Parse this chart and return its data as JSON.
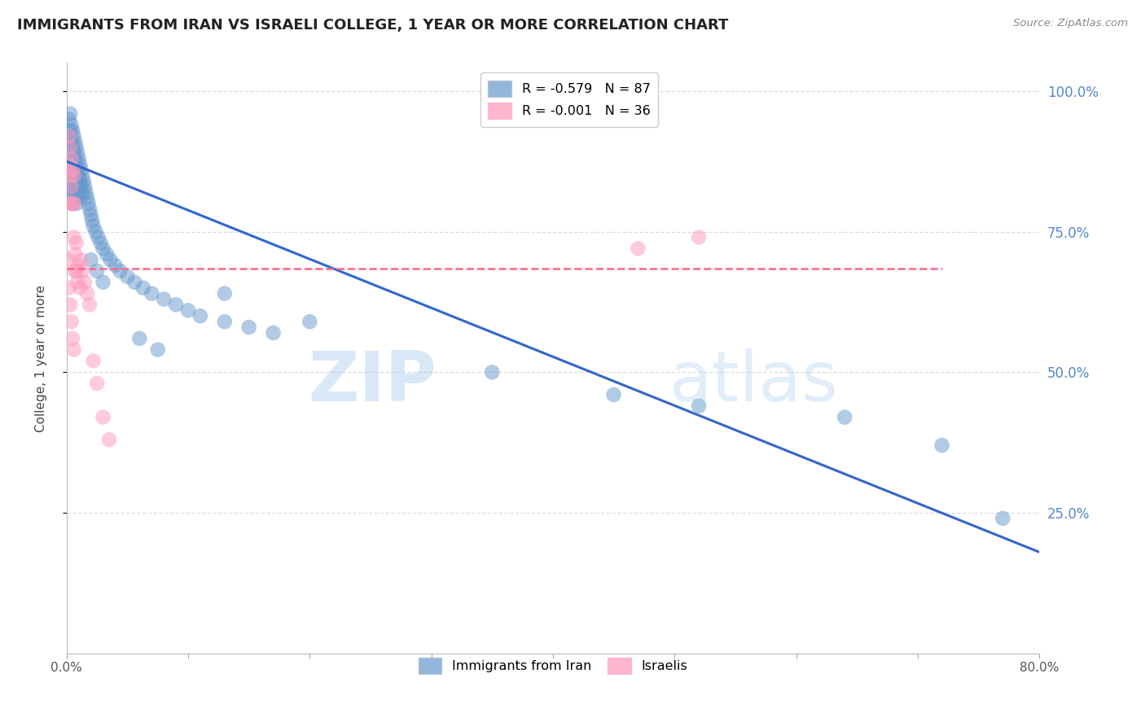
{
  "title": "IMMIGRANTS FROM IRAN VS ISRAELI COLLEGE, 1 YEAR OR MORE CORRELATION CHART",
  "source": "Source: ZipAtlas.com",
  "ylabel": "College, 1 year or more",
  "right_yticks": [
    "100.0%",
    "75.0%",
    "50.0%",
    "25.0%"
  ],
  "right_ytick_vals": [
    1.0,
    0.75,
    0.5,
    0.25
  ],
  "legend_blue_r": "R = -0.579",
  "legend_blue_n": "N = 87",
  "legend_pink_r": "R = -0.001",
  "legend_pink_n": "N = 36",
  "blue_color": "#6699CC",
  "pink_color": "#FF99BB",
  "line_blue": "#3366CC",
  "line_pink": "#FF6688",
  "watermark_zip": "ZIP",
  "watermark_atlas": "atlas",
  "blue_scatter_x": [
    0.001,
    0.001,
    0.002,
    0.002,
    0.002,
    0.002,
    0.003,
    0.003,
    0.003,
    0.003,
    0.003,
    0.004,
    0.004,
    0.004,
    0.004,
    0.004,
    0.005,
    0.005,
    0.005,
    0.005,
    0.005,
    0.006,
    0.006,
    0.006,
    0.006,
    0.007,
    0.007,
    0.007,
    0.007,
    0.008,
    0.008,
    0.008,
    0.008,
    0.009,
    0.009,
    0.009,
    0.01,
    0.01,
    0.01,
    0.011,
    0.011,
    0.011,
    0.012,
    0.012,
    0.013,
    0.013,
    0.014,
    0.015,
    0.016,
    0.017,
    0.018,
    0.019,
    0.02,
    0.021,
    0.022,
    0.024,
    0.026,
    0.028,
    0.03,
    0.033,
    0.036,
    0.04,
    0.044,
    0.05,
    0.056,
    0.063,
    0.07,
    0.08,
    0.09,
    0.1,
    0.11,
    0.13,
    0.15,
    0.17,
    0.02,
    0.025,
    0.03,
    0.06,
    0.075,
    0.52,
    0.64,
    0.72,
    0.77,
    0.13,
    0.2,
    0.35,
    0.45
  ],
  "blue_scatter_y": [
    0.91,
    0.86,
    0.95,
    0.92,
    0.88,
    0.84,
    0.96,
    0.93,
    0.9,
    0.87,
    0.83,
    0.94,
    0.91,
    0.88,
    0.85,
    0.82,
    0.93,
    0.9,
    0.87,
    0.84,
    0.8,
    0.92,
    0.89,
    0.86,
    0.82,
    0.91,
    0.88,
    0.85,
    0.81,
    0.9,
    0.87,
    0.84,
    0.8,
    0.89,
    0.86,
    0.83,
    0.88,
    0.85,
    0.82,
    0.87,
    0.84,
    0.81,
    0.86,
    0.83,
    0.85,
    0.82,
    0.84,
    0.83,
    0.82,
    0.81,
    0.8,
    0.79,
    0.78,
    0.77,
    0.76,
    0.75,
    0.74,
    0.73,
    0.72,
    0.71,
    0.7,
    0.69,
    0.68,
    0.67,
    0.66,
    0.65,
    0.64,
    0.63,
    0.62,
    0.61,
    0.6,
    0.59,
    0.58,
    0.57,
    0.7,
    0.68,
    0.66,
    0.56,
    0.54,
    0.44,
    0.42,
    0.37,
    0.24,
    0.64,
    0.59,
    0.5,
    0.46
  ],
  "pink_scatter_x": [
    0.001,
    0.002,
    0.002,
    0.003,
    0.003,
    0.003,
    0.004,
    0.004,
    0.005,
    0.005,
    0.006,
    0.006,
    0.006,
    0.007,
    0.007,
    0.008,
    0.008,
    0.009,
    0.01,
    0.011,
    0.012,
    0.013,
    0.015,
    0.017,
    0.019,
    0.022,
    0.025,
    0.03,
    0.035,
    0.002,
    0.003,
    0.004,
    0.005,
    0.006,
    0.47,
    0.52
  ],
  "pink_scatter_y": [
    0.7,
    0.87,
    0.92,
    0.9,
    0.85,
    0.8,
    0.88,
    0.83,
    0.86,
    0.8,
    0.85,
    0.8,
    0.74,
    0.71,
    0.68,
    0.73,
    0.68,
    0.66,
    0.69,
    0.65,
    0.7,
    0.68,
    0.66,
    0.64,
    0.62,
    0.52,
    0.48,
    0.42,
    0.38,
    0.65,
    0.62,
    0.59,
    0.56,
    0.54,
    0.72,
    0.74
  ],
  "blue_line_x": [
    0.0,
    0.8
  ],
  "blue_line_y": [
    0.875,
    0.18
  ],
  "pink_line_x": [
    0.0,
    0.72
  ],
  "pink_line_y": [
    0.685,
    0.685
  ],
  "xlim": [
    0.0,
    0.8
  ],
  "ylim": [
    0.0,
    1.05
  ],
  "grid_color": "#DDDDDD",
  "bg_color": "#FFFFFF",
  "title_fontsize": 13,
  "axis_fontsize": 11,
  "tick_fontsize": 11,
  "right_tick_color": "#5588CC",
  "bottom_legend_label_blue": "Immigrants from Iran",
  "bottom_legend_label_pink": "Israelis"
}
